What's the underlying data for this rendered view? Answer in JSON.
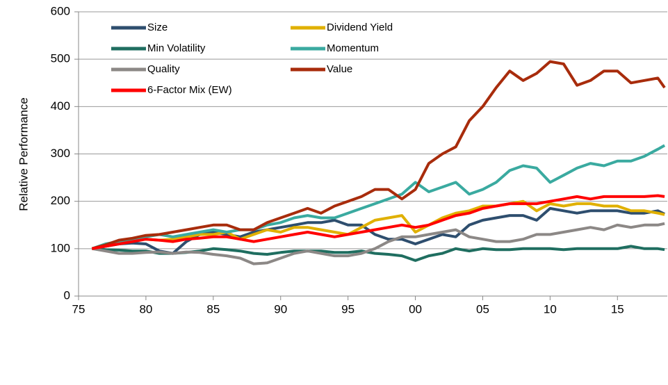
{
  "chart_data": {
    "type": "line",
    "y_label": "Relative Performance",
    "x": [
      1976,
      1977,
      1978,
      1979,
      1980,
      1981,
      1982,
      1983,
      1984,
      1985,
      1986,
      1987,
      1988,
      1989,
      1990,
      1991,
      1992,
      1993,
      1994,
      1995,
      1996,
      1997,
      1998,
      1999,
      2000,
      2001,
      2002,
      2003,
      2004,
      2005,
      2006,
      2007,
      2008,
      2009,
      2010,
      2011,
      2012,
      2013,
      2014,
      2015,
      2016,
      2017,
      2018,
      2018.5
    ],
    "series": [
      {
        "name": "Size",
        "color": "#2e4e6e",
        "values": [
          100,
          105,
          110,
          112,
          110,
          95,
          90,
          115,
          130,
          135,
          130,
          125,
          135,
          140,
          145,
          150,
          155,
          155,
          160,
          150,
          150,
          130,
          120,
          120,
          110,
          120,
          130,
          125,
          150,
          160,
          165,
          170,
          170,
          160,
          185,
          180,
          175,
          180,
          180,
          180,
          175,
          175,
          180,
          173
        ]
      },
      {
        "name": "Dividend Yield",
        "color": "#e0b000",
        "values": [
          100,
          108,
          115,
          118,
          120,
          118,
          120,
          125,
          130,
          130,
          135,
          120,
          130,
          140,
          135,
          145,
          145,
          140,
          135,
          130,
          145,
          160,
          165,
          170,
          135,
          150,
          165,
          175,
          180,
          190,
          190,
          195,
          200,
          180,
          195,
          190,
          195,
          195,
          190,
          190,
          180,
          180,
          175,
          172
        ]
      },
      {
        "name": "Min Volatility",
        "color": "#1f6e60",
        "values": [
          100,
          98,
          97,
          95,
          95,
          90,
          90,
          92,
          95,
          100,
          98,
          95,
          90,
          88,
          92,
          95,
          95,
          95,
          92,
          92,
          95,
          90,
          88,
          85,
          75,
          85,
          90,
          100,
          95,
          100,
          98,
          98,
          100,
          100,
          100,
          98,
          100,
          100,
          100,
          100,
          105,
          100,
          100,
          98
        ]
      },
      {
        "name": "Momentum",
        "color": "#3aaaa0",
        "values": [
          100,
          110,
          115,
          120,
          125,
          130,
          125,
          130,
          135,
          140,
          135,
          140,
          140,
          150,
          155,
          165,
          170,
          165,
          165,
          175,
          185,
          195,
          205,
          215,
          240,
          220,
          230,
          240,
          215,
          225,
          240,
          265,
          275,
          270,
          240,
          255,
          270,
          280,
          275,
          285,
          285,
          295,
          310,
          318
        ]
      },
      {
        "name": "Quality",
        "color": "#8c8886",
        "values": [
          100,
          95,
          90,
          90,
          92,
          93,
          90,
          93,
          92,
          88,
          85,
          80,
          68,
          70,
          80,
          90,
          95,
          90,
          85,
          85,
          90,
          100,
          115,
          125,
          125,
          130,
          135,
          140,
          125,
          120,
          115,
          115,
          120,
          130,
          130,
          135,
          140,
          145,
          140,
          150,
          145,
          150,
          150,
          153
        ]
      },
      {
        "name": "Value",
        "color": "#a82c0c",
        "values": [
          100,
          108,
          118,
          122,
          128,
          130,
          135,
          140,
          145,
          150,
          150,
          140,
          140,
          155,
          165,
          175,
          185,
          175,
          190,
          200,
          210,
          225,
          225,
          205,
          225,
          280,
          300,
          315,
          370,
          400,
          440,
          475,
          455,
          470,
          495,
          490,
          445,
          455,
          475,
          475,
          450,
          455,
          460,
          440
        ]
      },
      {
        "name": "6-Factor Mix (EW)",
        "color": "#ff0000",
        "values": [
          100,
          105,
          110,
          115,
          120,
          118,
          115,
          120,
          122,
          125,
          125,
          120,
          115,
          120,
          125,
          130,
          135,
          130,
          125,
          130,
          135,
          140,
          145,
          150,
          145,
          150,
          160,
          170,
          175,
          185,
          190,
          195,
          195,
          195,
          200,
          205,
          210,
          205,
          210,
          210,
          210,
          210,
          212,
          210
        ]
      }
    ],
    "xlim": [
      1975,
      2018.7
    ],
    "xticks": [
      {
        "value": 1975,
        "label": "75"
      },
      {
        "value": 1980,
        "label": "80"
      },
      {
        "value": 1985,
        "label": "85"
      },
      {
        "value": 1990,
        "label": "90"
      },
      {
        "value": 1995,
        "label": "95"
      },
      {
        "value": 2000,
        "label": "00"
      },
      {
        "value": 2005,
        "label": "05"
      },
      {
        "value": 2010,
        "label": "10"
      },
      {
        "value": 2015,
        "label": "15"
      }
    ],
    "ylim": [
      0,
      600
    ],
    "yticks": [
      0,
      100,
      200,
      300,
      400,
      500,
      600
    ],
    "grid": true
  }
}
